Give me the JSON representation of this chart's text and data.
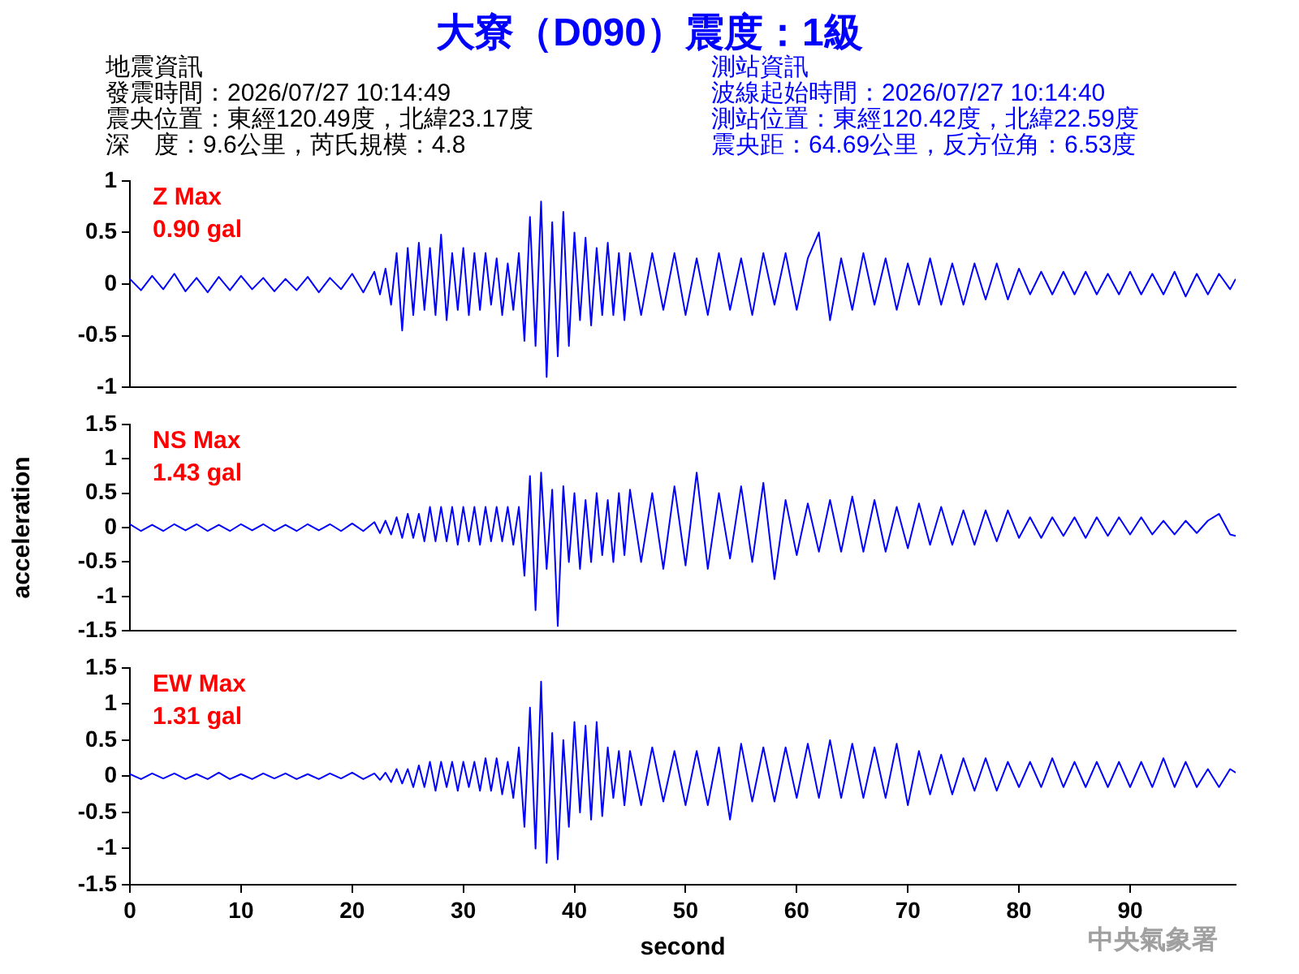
{
  "chart_data": [
    {
      "type": "other",
      "title": "大寮（D090）震度：1級",
      "annotations": [
        "地震資訊",
        "發震時間：2026/07/27 10:14:49",
        "震央位置：東經120.49度，北緯23.17度",
        "深　度：9.6公里，芮氏規模：4.8",
        "測站資訊",
        "波線起始時間：2026/07/27 10:14:40",
        "測站位置：東經120.42度，北緯22.59度",
        "震央距：64.69公里，反方位角：6.53度"
      ]
    },
    {
      "type": "line",
      "x": [
        0,
        1,
        2,
        3,
        4,
        5,
        6,
        7,
        8,
        9,
        10,
        11,
        12,
        13,
        14,
        15,
        16,
        17,
        18,
        19,
        20,
        21,
        22,
        22.5,
        23,
        23.5,
        24,
        24.5,
        25,
        25.5,
        26,
        26.5,
        27,
        27.5,
        28,
        28.5,
        29,
        29.5,
        30,
        30.5,
        31,
        31.5,
        32,
        32.5,
        33,
        33.5,
        34,
        34.5,
        35,
        35.5,
        36,
        36.5,
        37,
        37.5,
        38,
        38.5,
        39,
        39.5,
        40,
        40.5,
        41,
        41.5,
        42,
        42.5,
        43,
        43.5,
        44,
        44.5,
        45,
        46,
        47,
        48,
        49,
        50,
        51,
        52,
        53,
        54,
        55,
        56,
        57,
        58,
        59,
        60,
        61,
        62,
        63,
        64,
        65,
        66,
        67,
        68,
        69,
        70,
        71,
        72,
        73,
        74,
        75,
        76,
        77,
        78,
        79,
        80,
        81,
        82,
        83,
        84,
        85,
        86,
        87,
        88,
        89,
        90,
        91,
        92,
        93,
        94,
        95,
        96,
        97,
        98,
        99,
        99.5
      ],
      "series": [
        {
          "color": "#0000ff",
          "values": [
            0.05,
            -0.06,
            0.08,
            -0.05,
            0.1,
            -0.07,
            0.06,
            -0.08,
            0.07,
            -0.06,
            0.08,
            -0.05,
            0.06,
            -0.07,
            0.05,
            -0.06,
            0.07,
            -0.08,
            0.06,
            -0.05,
            0.1,
            -0.08,
            0.12,
            -0.1,
            0.15,
            -0.2,
            0.3,
            -0.45,
            0.35,
            -0.3,
            0.4,
            -0.25,
            0.35,
            -0.3,
            0.48,
            -0.35,
            0.3,
            -0.25,
            0.35,
            -0.3,
            0.3,
            -0.25,
            0.3,
            -0.2,
            0.25,
            -0.3,
            0.2,
            -0.25,
            0.3,
            -0.55,
            0.65,
            -0.6,
            0.8,
            -0.9,
            0.6,
            -0.7,
            0.7,
            -0.6,
            0.5,
            -0.35,
            0.45,
            -0.4,
            0.35,
            -0.3,
            0.4,
            -0.3,
            0.3,
            -0.35,
            0.3,
            -0.3,
            0.3,
            -0.25,
            0.3,
            -0.3,
            0.25,
            -0.3,
            0.3,
            -0.25,
            0.25,
            -0.3,
            0.3,
            -0.2,
            0.3,
            -0.25,
            0.25,
            0.5,
            -0.35,
            0.25,
            -0.25,
            0.3,
            -0.2,
            0.25,
            -0.25,
            0.2,
            -0.2,
            0.25,
            -0.2,
            0.2,
            -0.2,
            0.2,
            -0.15,
            0.2,
            -0.15,
            0.15,
            -0.1,
            0.12,
            -0.1,
            0.12,
            -0.1,
            0.12,
            -0.1,
            0.1,
            -0.1,
            0.12,
            -0.1,
            0.1,
            -0.1,
            0.12,
            -0.12,
            0.1,
            -0.1,
            0.1,
            -0.05,
            0.05
          ]
        }
      ],
      "xlim": [
        0,
        99.5
      ],
      "xticks": [
        0,
        10,
        20,
        30,
        40,
        50,
        60,
        70,
        80,
        90
      ],
      "ylim": [
        -1,
        1
      ],
      "yticks": [
        -1,
        -0.5,
        0,
        0.5,
        1
      ],
      "tick_labels": "y",
      "annotations": [
        "Z Max",
        "0.90 gal"
      ]
    },
    {
      "type": "line",
      "ylabel": "acceleration",
      "x": [
        0,
        1,
        2,
        3,
        4,
        5,
        6,
        7,
        8,
        9,
        10,
        11,
        12,
        13,
        14,
        15,
        16,
        17,
        18,
        19,
        20,
        21,
        22,
        22.5,
        23,
        23.5,
        24,
        24.5,
        25,
        25.5,
        26,
        26.5,
        27,
        27.5,
        28,
        28.5,
        29,
        29.5,
        30,
        30.5,
        31,
        31.5,
        32,
        32.5,
        33,
        33.5,
        34,
        34.5,
        35,
        35.5,
        36,
        36.5,
        37,
        37.5,
        38,
        38.5,
        39,
        39.5,
        40,
        40.5,
        41,
        41.5,
        42,
        42.5,
        43,
        43.5,
        44,
        44.5,
        45,
        46,
        47,
        48,
        49,
        50,
        51,
        52,
        53,
        54,
        55,
        56,
        57,
        58,
        59,
        60,
        61,
        62,
        63,
        64,
        65,
        66,
        67,
        68,
        69,
        70,
        71,
        72,
        73,
        74,
        75,
        76,
        77,
        78,
        79,
        80,
        81,
        82,
        83,
        84,
        85,
        86,
        87,
        88,
        89,
        90,
        91,
        92,
        93,
        94,
        95,
        96,
        97,
        98,
        99,
        99.5
      ],
      "series": [
        {
          "color": "#0000ff",
          "values": [
            0.05,
            -0.05,
            0.04,
            -0.05,
            0.05,
            -0.04,
            0.05,
            -0.05,
            0.04,
            -0.05,
            0.05,
            -0.04,
            0.05,
            -0.05,
            0.04,
            -0.05,
            0.05,
            -0.04,
            0.05,
            -0.05,
            0.06,
            -0.05,
            0.08,
            -0.08,
            0.1,
            -0.1,
            0.15,
            -0.15,
            0.2,
            -0.15,
            0.2,
            -0.2,
            0.3,
            -0.2,
            0.3,
            -0.2,
            0.3,
            -0.25,
            0.3,
            -0.2,
            0.3,
            -0.25,
            0.3,
            -0.2,
            0.3,
            -0.2,
            0.3,
            -0.25,
            0.3,
            -0.7,
            0.75,
            -1.2,
            0.8,
            -0.6,
            0.55,
            -1.43,
            0.6,
            -0.5,
            0.5,
            -0.6,
            0.4,
            -0.5,
            0.5,
            -0.4,
            0.4,
            -0.5,
            0.5,
            -0.4,
            0.55,
            -0.5,
            0.5,
            -0.6,
            0.6,
            -0.55,
            0.8,
            -0.6,
            0.5,
            -0.45,
            0.6,
            -0.5,
            0.65,
            -0.75,
            0.4,
            -0.4,
            0.35,
            -0.35,
            0.4,
            -0.35,
            0.45,
            -0.35,
            0.4,
            -0.35,
            0.3,
            -0.3,
            0.35,
            -0.25,
            0.3,
            -0.25,
            0.25,
            -0.25,
            0.25,
            -0.2,
            0.25,
            -0.15,
            0.15,
            -0.15,
            0.15,
            -0.12,
            0.15,
            -0.15,
            0.15,
            -0.12,
            0.15,
            -0.1,
            0.15,
            -0.1,
            0.1,
            -0.1,
            0.1,
            -0.08,
            0.1,
            0.2,
            -0.1,
            -0.12
          ]
        }
      ],
      "xlim": [
        0,
        99.5
      ],
      "xticks": [
        0,
        10,
        20,
        30,
        40,
        50,
        60,
        70,
        80,
        90
      ],
      "ylim": [
        -1.5,
        1.5
      ],
      "yticks": [
        -1.5,
        -1,
        -0.5,
        0,
        0.5,
        1,
        1.5
      ],
      "tick_labels": "y",
      "annotations": [
        "NS Max",
        "1.43 gal"
      ]
    },
    {
      "type": "line",
      "xlabel": "second",
      "x": [
        0,
        1,
        2,
        3,
        4,
        5,
        6,
        7,
        8,
        9,
        10,
        11,
        12,
        13,
        14,
        15,
        16,
        17,
        18,
        19,
        20,
        21,
        22,
        22.5,
        23,
        23.5,
        24,
        24.5,
        25,
        25.5,
        26,
        26.5,
        27,
        27.5,
        28,
        28.5,
        29,
        29.5,
        30,
        30.5,
        31,
        31.5,
        32,
        32.5,
        33,
        33.5,
        34,
        34.5,
        35,
        35.5,
        36,
        36.5,
        37,
        37.5,
        38,
        38.5,
        39,
        39.5,
        40,
        40.5,
        41,
        41.5,
        42,
        42.5,
        43,
        43.5,
        44,
        44.5,
        45,
        46,
        47,
        48,
        49,
        50,
        51,
        52,
        53,
        54,
        55,
        56,
        57,
        58,
        59,
        60,
        61,
        62,
        63,
        64,
        65,
        66,
        67,
        68,
        69,
        70,
        71,
        72,
        73,
        74,
        75,
        76,
        77,
        78,
        79,
        80,
        81,
        82,
        83,
        84,
        85,
        86,
        87,
        88,
        89,
        90,
        91,
        92,
        93,
        94,
        95,
        96,
        97,
        98,
        99,
        99.5
      ],
      "series": [
        {
          "color": "#0000ff",
          "values": [
            0.03,
            -0.04,
            0.04,
            -0.03,
            0.04,
            -0.04,
            0.03,
            -0.04,
            0.05,
            -0.04,
            0.03,
            -0.04,
            0.04,
            -0.03,
            0.04,
            -0.04,
            0.03,
            -0.04,
            0.04,
            -0.03,
            0.05,
            -0.04,
            0.04,
            -0.05,
            0.05,
            -0.08,
            0.1,
            -0.1,
            0.1,
            -0.15,
            0.15,
            -0.15,
            0.2,
            -0.2,
            0.2,
            -0.15,
            0.2,
            -0.2,
            0.2,
            -0.15,
            0.2,
            -0.2,
            0.25,
            -0.2,
            0.25,
            -0.25,
            0.2,
            -0.3,
            0.4,
            -0.7,
            0.95,
            -1.0,
            1.31,
            -1.2,
            0.6,
            -1.15,
            0.5,
            -0.7,
            0.75,
            -0.5,
            0.7,
            -0.6,
            0.75,
            -0.55,
            0.4,
            -0.3,
            0.35,
            -0.4,
            0.35,
            -0.4,
            0.4,
            -0.35,
            0.35,
            -0.4,
            0.35,
            -0.4,
            0.4,
            -0.6,
            0.45,
            -0.35,
            0.4,
            -0.35,
            0.4,
            -0.3,
            0.45,
            -0.3,
            0.5,
            -0.3,
            0.45,
            -0.3,
            0.4,
            -0.3,
            0.45,
            -0.4,
            0.35,
            -0.25,
            0.3,
            -0.25,
            0.25,
            -0.2,
            0.25,
            -0.2,
            0.2,
            -0.15,
            0.2,
            -0.15,
            0.25,
            -0.15,
            0.2,
            -0.15,
            0.2,
            -0.15,
            0.2,
            -0.15,
            0.2,
            -0.15,
            0.25,
            -0.15,
            0.2,
            -0.15,
            0.1,
            -0.15,
            0.1,
            0.05
          ]
        }
      ],
      "xlim": [
        0,
        99.5
      ],
      "xticks": [
        0,
        10,
        20,
        30,
        40,
        50,
        60,
        70,
        80,
        90
      ],
      "ylim": [
        -1.5,
        1.5
      ],
      "yticks": [
        -1.5,
        -1,
        -0.5,
        0,
        0.5,
        1,
        1.5
      ],
      "annotations": [
        "EW Max",
        "1.31 gal",
        "中央氣象署"
      ]
    }
  ]
}
